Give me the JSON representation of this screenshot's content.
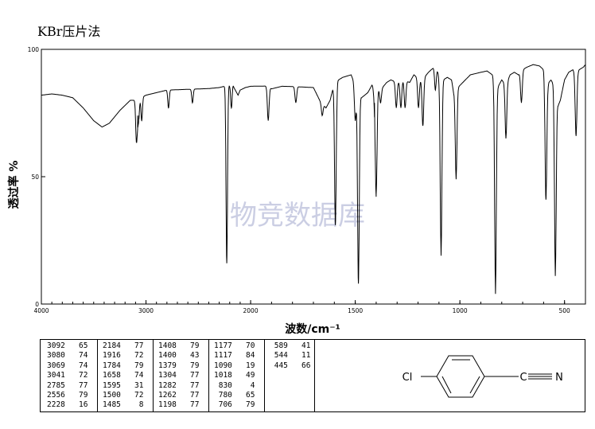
{
  "header": {
    "method": "KBr压片法"
  },
  "chart_data": {
    "type": "line",
    "title": "",
    "xlabel": "波数/cm⁻¹",
    "ylabel": "透过率 %",
    "xlim": [
      4000,
      400
    ],
    "ylim": [
      0,
      100
    ],
    "x_ticks": [
      4000,
      3000,
      2000,
      1500,
      1000,
      500
    ],
    "y_ticks": [
      0,
      50,
      100
    ],
    "watermark": "物竞数据库",
    "baseline": [
      [
        4000,
        82
      ],
      [
        3900,
        82.5
      ],
      [
        3800,
        82
      ],
      [
        3700,
        81
      ],
      [
        3600,
        77
      ],
      [
        3500,
        72
      ],
      [
        3420,
        69.5
      ],
      [
        3350,
        71
      ],
      [
        3250,
        76
      ],
      [
        3150,
        80
      ],
      [
        3100,
        80
      ],
      [
        3000,
        82
      ],
      [
        2900,
        83
      ],
      [
        2800,
        84
      ],
      [
        2600,
        84.3
      ],
      [
        2400,
        84.6
      ],
      [
        2300,
        85
      ],
      [
        2200,
        86
      ],
      [
        2185,
        89
      ],
      [
        2160,
        85
      ],
      [
        2120,
        82
      ],
      [
        2100,
        84
      ],
      [
        2050,
        85
      ],
      [
        2000,
        85.5
      ],
      [
        1920,
        85.6
      ],
      [
        1900,
        84.5
      ],
      [
        1850,
        85.5
      ],
      [
        1800,
        85.4
      ],
      [
        1700,
        85
      ],
      [
        1670,
        80
      ],
      [
        1640,
        77
      ],
      [
        1620,
        80
      ],
      [
        1600,
        87
      ],
      [
        1560,
        89
      ],
      [
        1520,
        90
      ],
      [
        1500,
        86
      ],
      [
        1470,
        81
      ],
      [
        1440,
        83
      ],
      [
        1420,
        86
      ],
      [
        1380,
        84
      ],
      [
        1350,
        87
      ],
      [
        1330,
        88
      ],
      [
        1300,
        87
      ],
      [
        1270,
        88
      ],
      [
        1240,
        87
      ],
      [
        1220,
        90
      ],
      [
        1190,
        88
      ],
      [
        1170,
        89
      ],
      [
        1150,
        91
      ],
      [
        1130,
        92.5
      ],
      [
        1115,
        94.5
      ],
      [
        1100,
        89
      ],
      [
        1080,
        88
      ],
      [
        1060,
        89
      ],
      [
        1040,
        88
      ],
      [
        1030,
        83
      ],
      [
        1010,
        85
      ],
      [
        980,
        87.5
      ],
      [
        950,
        90
      ],
      [
        900,
        91
      ],
      [
        870,
        91.5
      ],
      [
        845,
        90
      ],
      [
        820,
        85
      ],
      [
        800,
        88
      ],
      [
        780,
        86
      ],
      [
        760,
        90
      ],
      [
        740,
        91
      ],
      [
        720,
        90
      ],
      [
        700,
        92
      ],
      [
        680,
        93
      ],
      [
        650,
        94
      ],
      [
        620,
        93.5
      ],
      [
        600,
        92
      ],
      [
        585,
        84
      ],
      [
        575,
        87
      ],
      [
        565,
        88
      ],
      [
        550,
        86
      ],
      [
        540,
        80
      ],
      [
        530,
        78
      ],
      [
        520,
        80
      ],
      [
        500,
        88
      ],
      [
        480,
        91
      ],
      [
        460,
        92
      ],
      [
        445,
        90
      ],
      [
        430,
        92
      ],
      [
        410,
        93
      ],
      [
        400,
        94
      ]
    ],
    "peaks": [
      [
        3092,
        65
      ],
      [
        3080,
        74
      ],
      [
        3069,
        74
      ],
      [
        3041,
        72
      ],
      [
        2785,
        77
      ],
      [
        2556,
        79
      ],
      [
        2228,
        16
      ],
      [
        2184,
        77
      ],
      [
        1916,
        72
      ],
      [
        1784,
        79
      ],
      [
        1658,
        74
      ],
      [
        1595,
        31
      ],
      [
        1500,
        72
      ],
      [
        1485,
        8
      ],
      [
        1408,
        79
      ],
      [
        1400,
        43
      ],
      [
        1379,
        79
      ],
      [
        1304,
        77
      ],
      [
        1282,
        77
      ],
      [
        1262,
        77
      ],
      [
        1198,
        77
      ],
      [
        1177,
        70
      ],
      [
        1117,
        84
      ],
      [
        1090,
        19
      ],
      [
        1018,
        49
      ],
      [
        830,
        4
      ],
      [
        780,
        65
      ],
      [
        706,
        79
      ],
      [
        589,
        41
      ],
      [
        544,
        11
      ],
      [
        445,
        66
      ]
    ]
  },
  "peak_table": {
    "columns": [
      [
        [
          "3092",
          "65"
        ],
        [
          "3080",
          "74"
        ],
        [
          "3069",
          "74"
        ],
        [
          "3041",
          "72"
        ],
        [
          "2785",
          "77"
        ],
        [
          "2556",
          "79"
        ],
        [
          "2228",
          "16"
        ]
      ],
      [
        [
          "2184",
          "77"
        ],
        [
          "1916",
          "72"
        ],
        [
          "1784",
          "79"
        ],
        [
          "1658",
          "74"
        ],
        [
          "1595",
          "31"
        ],
        [
          "1500",
          "72"
        ],
        [
          "1485",
          "8"
        ]
      ],
      [
        [
          "1408",
          "79"
        ],
        [
          "1400",
          "43"
        ],
        [
          "1379",
          "79"
        ],
        [
          "1304",
          "77"
        ],
        [
          "1282",
          "77"
        ],
        [
          "1262",
          "77"
        ],
        [
          "1198",
          "77"
        ]
      ],
      [
        [
          "1177",
          "70"
        ],
        [
          "1117",
          "84"
        ],
        [
          "1090",
          "19"
        ],
        [
          "1018",
          "49"
        ],
        [
          "830",
          "4"
        ],
        [
          "780",
          "65"
        ],
        [
          "706",
          "79"
        ]
      ],
      [
        [
          "589",
          "41"
        ],
        [
          "544",
          "11"
        ],
        [
          "445",
          "66"
        ]
      ]
    ]
  },
  "structure": {
    "left_atom": "Cl",
    "right_atom": "N"
  }
}
